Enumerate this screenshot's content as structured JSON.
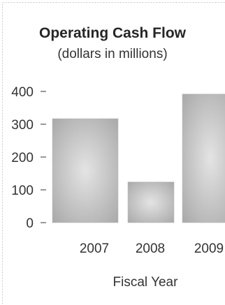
{
  "chart_data": {
    "type": "bar",
    "title": "Operating Cash Flow",
    "subtitle": "(dollars in millions)",
    "xlabel": "Fiscal Year",
    "ylabel": "",
    "categories": [
      "2007",
      "2008",
      "2009"
    ],
    "values": [
      317,
      124,
      392
    ],
    "ylim": [
      0,
      400
    ],
    "yticks": [
      "0",
      "100",
      "200",
      "300",
      "400"
    ],
    "grid": false,
    "legend": "none",
    "bar_color": "#b8b8b8"
  }
}
